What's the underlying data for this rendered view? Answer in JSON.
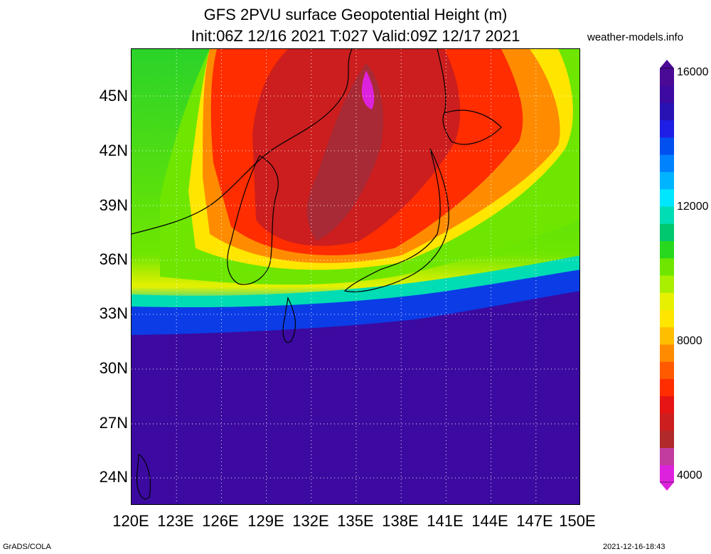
{
  "title_line1": "GFS 2PVU surface Geopotential Height (m)",
  "title_line2": "Init:06Z 12/16 2021 T:027 Valid:09Z 12/17 2021",
  "site": "weather-models.info",
  "footer_left": "GrADS/COLA",
  "footer_right": "2021-12-16-18:43",
  "lat_labels": [
    "45N",
    "42N",
    "39N",
    "36N",
    "33N",
    "30N",
    "27N",
    "24N"
  ],
  "lon_labels": [
    "120E",
    "123E",
    "126E",
    "129E",
    "132E",
    "135E",
    "138E",
    "141E",
    "144E",
    "147E",
    "150E"
  ],
  "colorbar": {
    "labels": [
      "16000",
      "12000",
      "8000",
      "4000"
    ],
    "colors": [
      "#dd22dd",
      "#c23ca0",
      "#b02a2a",
      "#cc1e1e",
      "#e61414",
      "#ff2d00",
      "#ff5a00",
      "#ff8c00",
      "#ffbe00",
      "#ffe600",
      "#e6f000",
      "#aaee00",
      "#6ee600",
      "#28d81e",
      "#00c86e",
      "#00dcb4",
      "#00e6ff",
      "#00b4ff",
      "#0082ff",
      "#0050f0",
      "#1e1ee6",
      "#2812b4",
      "#3c0aa0",
      "#4b0a96"
    ]
  }
}
